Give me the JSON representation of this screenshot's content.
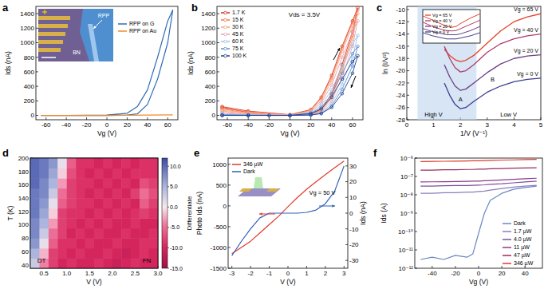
{
  "chart_data": [
    {
      "type": "line",
      "panel_label": "a",
      "x_label": "Vg (V)",
      "y_label": "Ids (nA)",
      "xlim": [
        -70,
        70
      ],
      "ylim": [
        -60,
        1500
      ],
      "xticks": [
        -60,
        -40,
        -20,
        0,
        20,
        40,
        60
      ],
      "yticks": [
        0,
        200,
        400,
        600,
        800,
        1000,
        1200,
        1400
      ],
      "legend": "upper right",
      "inset_labels": [
        "RPP",
        "BN"
      ],
      "series": [
        {
          "name": "RPP on G",
          "color": "#2f6db5",
          "x": [
            -65,
            -40,
            -20,
            0,
            20,
            30,
            40,
            50,
            60,
            65,
            60,
            50,
            40,
            30,
            20,
            0,
            -40,
            -65
          ],
          "values": [
            0,
            0,
            0,
            0,
            5,
            20,
            150,
            500,
            1000,
            1450,
            1300,
            800,
            350,
            120,
            30,
            5,
            0,
            0
          ]
        },
        {
          "name": "RPP on Au",
          "color": "#f28a2a",
          "x": [
            -65,
            -40,
            -20,
            0,
            20,
            40,
            65
          ],
          "values": [
            0,
            0,
            0,
            0,
            2,
            5,
            8
          ]
        }
      ]
    },
    {
      "type": "line",
      "panel_label": "b",
      "x_label": "Vg (V)",
      "y_label": "Ids (nA)",
      "xlim": [
        -70,
        70
      ],
      "ylim": [
        -60,
        1500
      ],
      "xticks": [
        -60,
        -40,
        -20,
        0,
        20,
        40,
        60
      ],
      "yticks": [
        0,
        200,
        400,
        600,
        800,
        1000,
        1200,
        1400
      ],
      "legend": "upper left",
      "marker": "circle",
      "annotations": [
        "Vds = 3.5V"
      ],
      "x": [
        -65,
        -40,
        -20,
        0,
        20,
        30,
        40,
        50,
        60,
        65,
        60,
        50,
        40,
        30,
        20,
        0,
        -40,
        -65
      ],
      "series": [
        {
          "name": "1.7 K",
          "color": "#d7301f",
          "values": [
            110,
            40,
            10,
            0,
            20,
            80,
            300,
            700,
            1150,
            1480,
            1300,
            950,
            550,
            250,
            80,
            10,
            60,
            120
          ]
        },
        {
          "name": "15 K",
          "color": "#f4794f",
          "values": [
            90,
            30,
            8,
            0,
            15,
            70,
            270,
            650,
            1100,
            1450,
            1280,
            920,
            520,
            230,
            70,
            8,
            50,
            100
          ]
        },
        {
          "name": "30 K",
          "color": "#f5a77f",
          "values": [
            60,
            20,
            5,
            0,
            12,
            60,
            240,
            600,
            1050,
            1400,
            1230,
            880,
            480,
            200,
            60,
            5,
            35,
            70
          ]
        },
        {
          "name": "45 K",
          "color": "#e8a3b5",
          "values": [
            30,
            10,
            3,
            0,
            10,
            50,
            200,
            520,
            950,
            1300,
            1150,
            800,
            420,
            170,
            50,
            3,
            20,
            40
          ]
        },
        {
          "name": "60 K",
          "color": "#9ec3e6",
          "values": [
            10,
            5,
            0,
            0,
            8,
            40,
            160,
            430,
            800,
            1100,
            980,
            680,
            350,
            140,
            40,
            0,
            8,
            15
          ]
        },
        {
          "name": "75 K",
          "color": "#5b8fd0",
          "values": [
            5,
            2,
            0,
            0,
            5,
            30,
            130,
            360,
            680,
            950,
            850,
            580,
            290,
            110,
            30,
            0,
            3,
            8
          ]
        },
        {
          "name": "100 K",
          "color": "#1f3f8f",
          "values": [
            0,
            0,
            0,
            0,
            5,
            25,
            110,
            300,
            580,
            820,
            740,
            500,
            250,
            90,
            25,
            0,
            0,
            0
          ]
        }
      ]
    },
    {
      "type": "line",
      "panel_label": "c",
      "x_label": "1/V (V⁻¹)",
      "y_label": "ln (I/V²)",
      "xlim": [
        0,
        5
      ],
      "ylim": [
        -28,
        -9.5
      ],
      "xticks": [
        0,
        1,
        2,
        3,
        4,
        5
      ],
      "yticks": [
        -10,
        -12,
        -14,
        -16,
        -18,
        -20,
        -22,
        -24,
        -26,
        -28
      ],
      "band": [
        0.4,
        2.6
      ],
      "annotations": [
        "High V",
        "Low V",
        "A",
        "B"
      ],
      "x": [
        1.4,
        1.6,
        1.8,
        2.0,
        2.2,
        2.5,
        3,
        3.5,
        4,
        4.5,
        5
      ],
      "series": [
        {
          "name": "Vg = 65 V",
          "color": "#e4402b",
          "values": [
            -16.5,
            -17.5,
            -18.2,
            -18.5,
            -18.3,
            -17.5,
            -15.5,
            -13.5,
            -12,
            -11.2,
            -10.7
          ]
        },
        {
          "name": "Vg = 40 V",
          "color": "#b03a6a",
          "values": [
            -16,
            -18,
            -19.5,
            -20.2,
            -20,
            -19,
            -17,
            -15.6,
            -14.8,
            -14.3,
            -14
          ]
        },
        {
          "name": "Vg = 20 V",
          "color": "#6b3f86",
          "values": [
            -19,
            -21,
            -22.5,
            -23.2,
            -23,
            -22,
            -20.3,
            -18.9,
            -18,
            -17.6,
            -17.4
          ]
        },
        {
          "name": "Vg = 0 V",
          "color": "#3b3f8f",
          "values": [
            -22,
            -24,
            -25.5,
            -26.2,
            -26,
            -25,
            -23.5,
            -22.5,
            -21.8,
            -21.4,
            -21.2
          ]
        }
      ],
      "inset": {
        "type": "line",
        "xlim": [
          -3,
          3
        ],
        "ylim": [
          -22,
          -6
        ],
        "tick_labels": false,
        "legend": "upper left",
        "x": [
          -3,
          -2,
          -1,
          -0.5,
          0,
          0.5,
          1,
          2,
          3
        ],
        "series": [
          {
            "name": "Vg = 65 V",
            "color": "#e4402b",
            "values": [
              -9,
              -11,
              -13,
              -14,
              -14.5,
              -14,
              -12.5,
              -10,
              -8
            ]
          },
          {
            "name": "Vg = 40 V",
            "color": "#b03a6a",
            "values": [
              -12,
              -14,
              -15.5,
              -16,
              -16.2,
              -16,
              -15,
              -13,
              -11
            ]
          },
          {
            "name": "Vg = 20 V",
            "color": "#6b3f86",
            "values": [
              -15,
              -16.5,
              -17.5,
              -18,
              -18,
              -18,
              -17.5,
              -16,
              -14
            ]
          },
          {
            "name": "Vg = 0 V",
            "color": "#3b3f8f",
            "values": [
              -17,
              -18.5,
              -19.5,
              -20,
              -20,
              -20,
              -19.5,
              -18.5,
              -17
            ]
          }
        ]
      }
    },
    {
      "type": "heatmap",
      "panel_label": "d",
      "x_label": "V (V)",
      "y_label": "T (K)",
      "xlim": [
        0.2,
        3.0
      ],
      "ylim": [
        35,
        200
      ],
      "xticks": [
        0.5,
        {
          "value": 1,
          "label": "1.0"
        },
        1.5,
        {
          "value": 2,
          "label": "2.0"
        },
        2.5,
        {
          "value": 3,
          "label": "3.0"
        }
      ],
      "yticks": [
        40,
        60,
        80,
        100,
        120,
        140,
        160,
        180,
        200
      ],
      "annotations": [
        "DT",
        "FN"
      ],
      "x": [
        0.3,
        0.5,
        0.7,
        0.9,
        1.1,
        1.3,
        1.5,
        1.7,
        1.9,
        2.1,
        2.3,
        2.5,
        2.7,
        2.9
      ],
      "y": [
        42.5,
        57.5,
        72.5,
        87.5,
        102.5,
        117.5,
        132.5,
        147.5,
        162.5,
        177.5,
        192.5
      ],
      "cells": [
        [
          3,
          -4,
          -8,
          -10,
          -9,
          -10,
          -10,
          -9,
          -10,
          -11,
          -10,
          -9,
          -10,
          -10
        ],
        [
          5,
          -2,
          -8,
          -9,
          -10,
          -9,
          -10,
          -10,
          -9,
          -10,
          -11,
          -10,
          -9,
          -10
        ],
        [
          7,
          1,
          -6,
          -9,
          -9,
          -10,
          -9,
          -10,
          -10,
          -9,
          -10,
          -10,
          -9,
          -9
        ],
        [
          8,
          3,
          -5,
          -8,
          -10,
          -9,
          -10,
          -9,
          -10,
          -10,
          -9,
          -10,
          -10,
          -9
        ],
        [
          8,
          5,
          -3,
          -8,
          -9,
          -10,
          -9,
          -10,
          -9,
          -10,
          -10,
          -9,
          -10,
          -10
        ],
        [
          9,
          6,
          -1,
          -8,
          -9,
          -9,
          -10,
          -9,
          -10,
          -9,
          -10,
          -9,
          -8,
          -9
        ],
        [
          9,
          7,
          1,
          -6,
          -8,
          -9,
          -9,
          -10,
          -9,
          -10,
          -9,
          -10,
          -6,
          -8
        ],
        [
          9,
          8,
          3,
          -5,
          -8,
          -9,
          -10,
          -9,
          -10,
          -9,
          -10,
          -8,
          -5,
          -7
        ],
        [
          10,
          8,
          5,
          -3,
          -8,
          -9,
          -9,
          -10,
          -9,
          -10,
          -9,
          -10,
          -7,
          -8
        ],
        [
          10,
          9,
          6,
          -1,
          -7,
          -9,
          -10,
          -9,
          -10,
          -9,
          -10,
          -9,
          -9,
          -9
        ],
        [
          10,
          9,
          7,
          1,
          -6,
          -9,
          -9,
          -10,
          -9,
          -10,
          -9,
          -10,
          -9,
          -9
        ]
      ],
      "color_label": "Differentiate",
      "color_range": [
        -15,
        12
      ],
      "color_ticks": [
        {
          "value": 10,
          "label": "10.0"
        },
        {
          "value": 5,
          "label": "5.0"
        },
        {
          "value": 0,
          "label": "0.0"
        },
        {
          "value": -5,
          "label": "-5.0"
        },
        {
          "value": -10,
          "label": "-10.0"
        },
        {
          "value": -15,
          "label": "-15.0"
        }
      ]
    },
    {
      "type": "line",
      "panel_label": "e",
      "x_label": "V (V)",
      "y_label": "Photo Ids (nA)",
      "y2_label": "Ids (nA)",
      "xlim": [
        -3.2,
        3.2
      ],
      "ylim": [
        -1500,
        1150
      ],
      "y2lim": [
        -35,
        35
      ],
      "xticks": [
        -3,
        -2,
        -1,
        0,
        1,
        2,
        3
      ],
      "yticks": [
        -1500,
        -1000,
        -500,
        0,
        500,
        1000
      ],
      "y2ticks": [
        -30,
        -20,
        -10,
        0,
        10,
        20,
        30
      ],
      "legend": "upper left",
      "annotations": [
        "Vg = 50 V"
      ],
      "x": [
        -3,
        -2.5,
        -2,
        -1.5,
        -1,
        -0.5,
        0,
        0.5,
        1,
        1.5,
        2,
        2.5,
        3
      ],
      "series": [
        {
          "name": "346 µW",
          "color": "#e23a2b",
          "values": [
            -1150,
            -1000,
            -850,
            -650,
            -450,
            -250,
            -20,
            200,
            400,
            580,
            750,
            920,
            1080
          ]
        },
        {
          "name": "Dark",
          "color": "#2f5fb5",
          "axis": "y2",
          "values": [
            -27,
            -18,
            -10,
            -3,
            0,
            0,
            0,
            0,
            0.5,
            2,
            6,
            14,
            30
          ]
        }
      ]
    },
    {
      "type": "line",
      "panel_label": "f",
      "log": "y",
      "x_label": "Vg (V)",
      "y_label": "Ids (A)",
      "xlim": [
        -55,
        55
      ],
      "ylim": [
        1e-12,
        1e-06
      ],
      "legend": "lower right",
      "xticks": [
        -40,
        -20,
        0,
        20,
        40
      ],
      "yticks": [
        {
          "value": 1e-12,
          "label": "10⁻¹²"
        },
        {
          "value": 1e-11,
          "label": "10⁻¹¹"
        },
        {
          "value": 1e-10,
          "label": "10⁻¹⁰"
        },
        {
          "value": 1e-09,
          "label": "10⁻⁹"
        },
        {
          "value": 1e-08,
          "label": "10⁻⁸"
        },
        {
          "value": 1e-07,
          "label": "10⁻⁷"
        },
        {
          "value": 1e-06,
          "label": "10⁻⁶"
        }
      ],
      "x": [
        -50,
        -40,
        -30,
        -20,
        -10,
        -5,
        0,
        5,
        10,
        20,
        30,
        40,
        50
      ],
      "series": [
        {
          "name": "Dark",
          "color": "#6b87c4",
          "values": [
            3e-12,
            4e-12,
            3e-12,
            5e-12,
            4e-12,
            6e-12,
            8e-11,
            1e-09,
            5e-09,
            1.2e-08,
            2e-08,
            2.5e-08,
            3e-08
          ]
        },
        {
          "name": "1.7 µW",
          "color": "#8a7cc0",
          "values": [
            1.2e-08,
            1.2e-08,
            1.3e-08,
            1.3e-08,
            1.4e-08,
            1.4e-08,
            1.5e-08,
            1.6e-08,
            1.8e-08,
            2.2e-08,
            2.6e-08,
            3e-08,
            3.3e-08
          ]
        },
        {
          "name": "4.0 µW",
          "color": "#7a4f9c",
          "values": [
            3e-08,
            3e-08,
            3.1e-08,
            3.2e-08,
            3.2e-08,
            3.3e-08,
            3.4e-08,
            3.5e-08,
            3.7e-08,
            4e-08,
            4.5e-08,
            5e-08,
            5.5e-08
          ]
        },
        {
          "name": "11 µW",
          "color": "#8b3b8a",
          "values": [
            5e-08,
            5.1e-08,
            5.2e-08,
            5.3e-08,
            5.4e-08,
            5.5e-08,
            5.6e-08,
            5.8e-08,
            6e-08,
            6.5e-08,
            7e-08,
            7.5e-08,
            8e-08
          ]
        },
        {
          "name": "47 µW",
          "color": "#9c2a5a",
          "values": [
            2.2e-07,
            2.2e-07,
            2.3e-07,
            2.3e-07,
            2.4e-07,
            2.4e-07,
            2.5e-07,
            2.5e-07,
            2.6e-07,
            2.7e-07,
            2.8e-07,
            2.9e-07,
            3e-07
          ]
        },
        {
          "name": "346 µW",
          "color": "#e23a2b",
          "values": [
            6.5e-07,
            6.6e-07,
            6.7e-07,
            6.8e-07,
            7e-07,
            7.1e-07,
            7.2e-07,
            7.3e-07,
            7.5e-07,
            7.8e-07,
            8e-07,
            8.3e-07,
            8.5e-07
          ]
        }
      ]
    }
  ]
}
